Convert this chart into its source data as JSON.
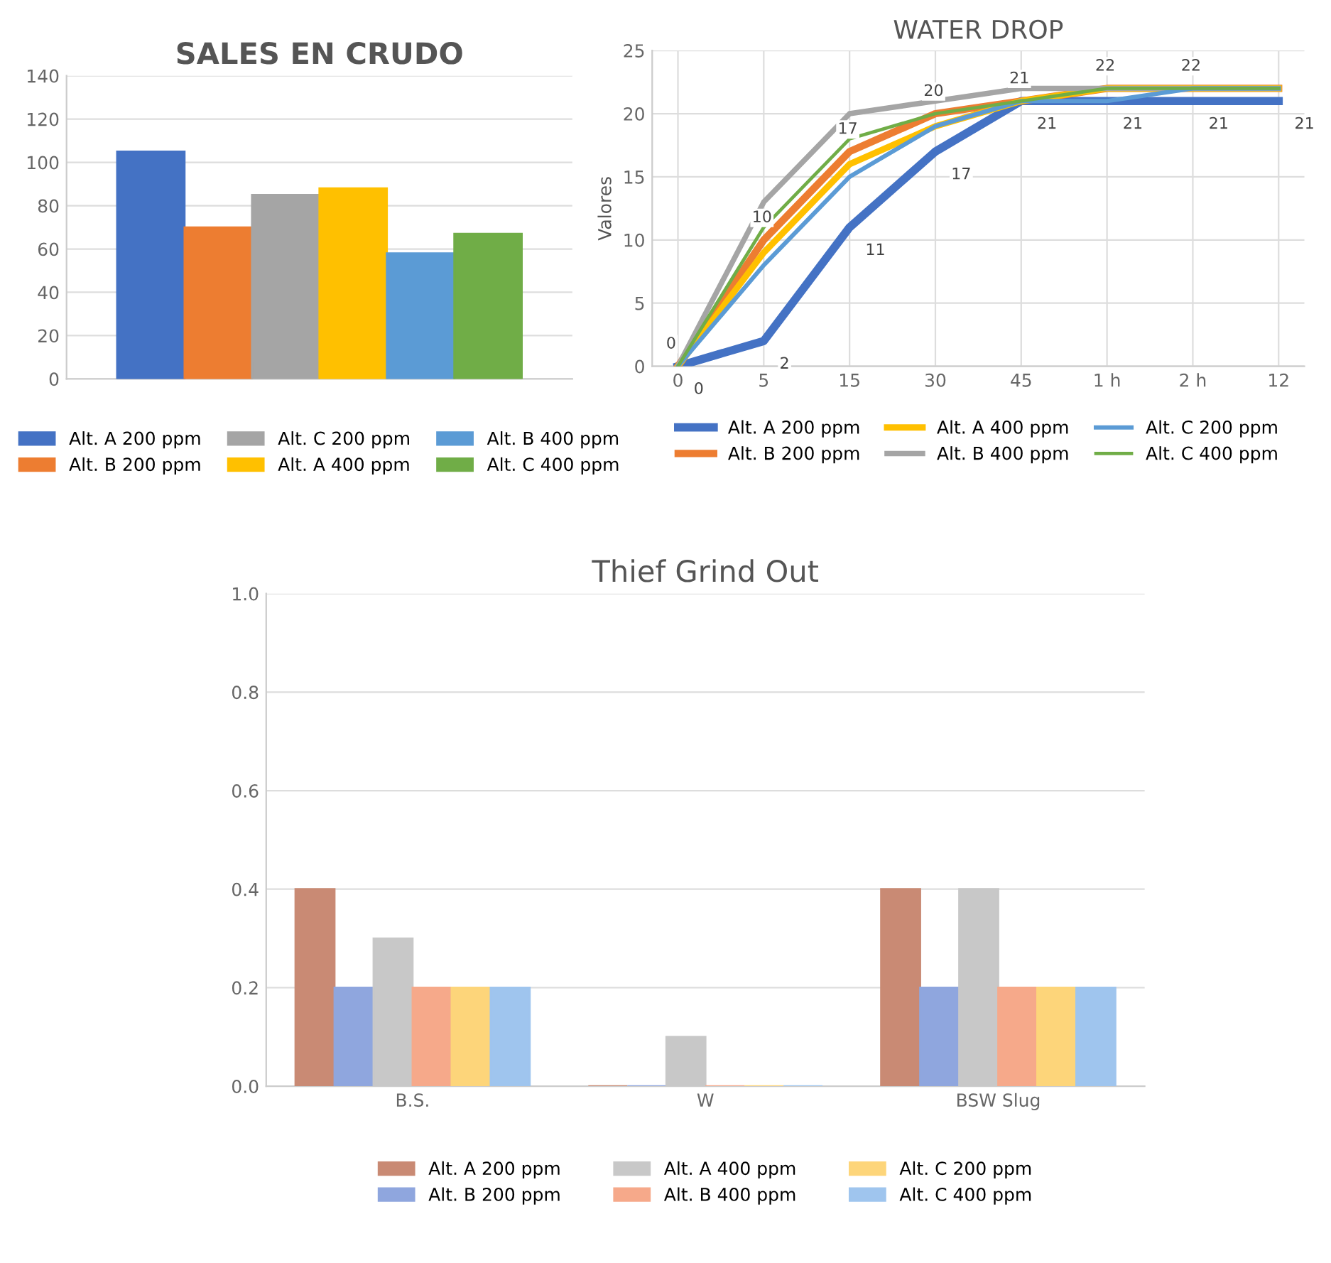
{
  "chart_data": [
    {
      "type": "bar",
      "title": "SALES EN CRUDO",
      "categories": [
        null
      ],
      "ylim": [
        0,
        140
      ],
      "yticks": [
        0,
        20,
        40,
        60,
        80,
        100,
        120,
        140
      ],
      "grid": "y",
      "legend": "bottom",
      "series": [
        {
          "name": "Alt. A 200 ppm",
          "color": "#4472c4",
          "values": [
            105
          ]
        },
        {
          "name": "Alt. B 200 ppm",
          "color": "#ed7d31",
          "values": [
            70
          ]
        },
        {
          "name": "Alt. C 200 ppm",
          "color": "#a5a5a5",
          "values": [
            85
          ]
        },
        {
          "name": "Alt. A 400 ppm",
          "color": "#ffc000",
          "values": [
            88
          ]
        },
        {
          "name": "Alt. B 400 ppm",
          "color": "#5b9bd5",
          "values": [
            58
          ]
        },
        {
          "name": "Alt. C 400 ppm",
          "color": "#70ad47",
          "values": [
            67
          ]
        }
      ]
    },
    {
      "type": "line",
      "title": "WATER DROP",
      "ylabel": "Valores",
      "categories": [
        "0",
        "5",
        "15",
        "30",
        "45",
        "1 h",
        "2 h",
        "12"
      ],
      "ylim": [
        0,
        25
      ],
      "yticks": [
        0,
        5,
        10,
        15,
        20,
        25
      ],
      "grid": true,
      "legend": "bottom",
      "series": [
        {
          "name": "Alt. A 200 ppm",
          "color": "#4472c4",
          "values": [
            0,
            2,
            11,
            17,
            21,
            21,
            21,
            21
          ],
          "value_labels": [
            "0",
            "2",
            "11",
            "17",
            "21",
            "21",
            "21",
            "21"
          ]
        },
        {
          "name": "Alt. B 200 ppm",
          "color": "#ed7d31",
          "values": [
            0,
            10,
            17,
            20,
            21,
            22,
            22,
            22
          ],
          "value_labels": [
            "0",
            "10",
            "17",
            "20",
            "21",
            "22",
            "22",
            null
          ]
        },
        {
          "name": "Alt. A 400 ppm",
          "color": "#ffc000",
          "values": [
            0,
            9,
            16,
            19,
            21,
            22,
            22,
            22
          ]
        },
        {
          "name": "Alt. B 400 ppm",
          "color": "#a5a5a5",
          "values": [
            0,
            13,
            20,
            21,
            22,
            22,
            22,
            22
          ]
        },
        {
          "name": "Alt. C 200 ppm",
          "color": "#5b9bd5",
          "values": [
            0,
            8,
            15,
            19,
            21,
            21,
            22,
            22
          ]
        },
        {
          "name": "Alt. C 400 ppm",
          "color": "#70ad47",
          "values": [
            0,
            11,
            18,
            20,
            21,
            22,
            22,
            22
          ]
        }
      ]
    },
    {
      "type": "bar",
      "title": "Thief Grind Out",
      "categories": [
        "B.S.",
        "W",
        "BSW Slug"
      ],
      "ylim": [
        0,
        1.0
      ],
      "yticks": [
        {
          "value": 0,
          "label": "0.0"
        },
        0.2,
        0.4,
        0.6,
        0.8,
        {
          "value": 1.0,
          "label": "1.0"
        }
      ],
      "grid": "y",
      "legend": "bottom",
      "series": [
        {
          "name": "Alt. A 200 ppm",
          "color": "#c98a74",
          "values": [
            0.4,
            0,
            0.4
          ]
        },
        {
          "name": "Alt. B 200 ppm",
          "color": "#8fa6de",
          "values": [
            0.2,
            0,
            0.2
          ]
        },
        {
          "name": "Alt. A 400 ppm",
          "color": "#c8c8c8",
          "values": [
            0.3,
            0.1,
            0.4
          ]
        },
        {
          "name": "Alt. B 400 ppm",
          "color": "#f6a98a",
          "values": [
            0.2,
            0,
            0.2
          ]
        },
        {
          "name": "Alt. C 200 ppm",
          "color": "#fdd57a",
          "values": [
            0.2,
            0,
            0.2
          ]
        },
        {
          "name": "Alt. C 400 ppm",
          "color": "#9fc5ee",
          "values": [
            0.2,
            0,
            0.2
          ]
        }
      ]
    }
  ]
}
